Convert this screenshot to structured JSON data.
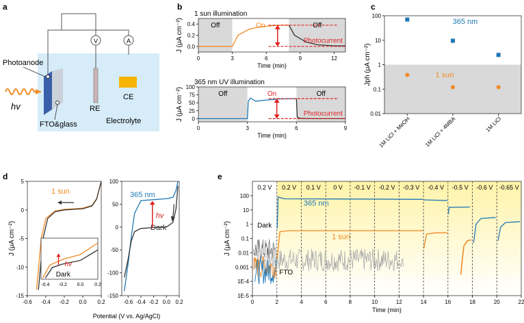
{
  "panel_a": {
    "letter": "a",
    "photoanode": "Photoanode",
    "hv": "hv",
    "fto": "FTO&glass",
    "re": "RE",
    "ce": "CE",
    "electrolyte": "Electrolyte",
    "meter_v": "V",
    "meter_a": "A"
  },
  "colors": {
    "orange": "#f08a24",
    "blue": "#1f77b4",
    "red": "#e02020",
    "gray_shade": "#d9d9d9",
    "yellow": "#fff3a8",
    "electrolyte": "#d6ecf8"
  },
  "chart_data": [
    {
      "panel": "b-top",
      "type": "line",
      "title": "1 sun illumination",
      "xlabel": "Time (min)",
      "ylabel": "J (μA cm⁻²)",
      "xlim": [
        0,
        13
      ],
      "ylim": [
        -0.1,
        0.5
      ],
      "xticks": [
        "0",
        "3",
        "6",
        "9",
        "12"
      ],
      "yticks": [
        "0.0",
        "0.2",
        "0.4"
      ],
      "regions": [
        {
          "label": "Off",
          "from": 0,
          "to": 3
        },
        {
          "label": "On",
          "from": 3,
          "to": 8
        },
        {
          "label": "Off",
          "from": 8,
          "to": 13
        }
      ],
      "annotation": "Photocurrent",
      "series": [
        {
          "name": "1 sun",
          "color": "#f08a24",
          "x": [
            0,
            3,
            3.5,
            4.5,
            5.5,
            6.5,
            7.5,
            8
          ],
          "y": [
            0,
            0,
            0.2,
            0.31,
            0.35,
            0.37,
            0.38,
            0.38
          ]
        },
        {
          "name": "decay",
          "color": "#333333",
          "x": [
            8,
            8.5,
            9.5,
            10.5,
            12,
            13
          ],
          "y": [
            0.38,
            0.2,
            0.08,
            0.03,
            0.01,
            0.01
          ]
        }
      ]
    },
    {
      "panel": "b-bottom",
      "type": "line",
      "title": "365 nm UV illumination",
      "xlabel": "Time (min)",
      "ylabel": "J (μA cm⁻²)",
      "xlim": [
        0,
        9
      ],
      "ylim": [
        -10,
        100
      ],
      "xticks": [
        "0",
        "3",
        "6",
        "9"
      ],
      "yticks": [
        "0",
        "25",
        "50",
        "75",
        "100"
      ],
      "regions": [
        {
          "label": "Off",
          "from": 0,
          "to": 3
        },
        {
          "label": "On",
          "from": 3,
          "to": 6
        },
        {
          "label": "Off",
          "from": 6,
          "to": 9
        }
      ],
      "annotation": "Photocurrent",
      "series": [
        {
          "name": "365 nm",
          "color": "#1f77b4",
          "x": [
            0,
            3,
            3.05,
            3.2,
            3.5,
            4,
            5,
            6
          ],
          "y": [
            0,
            0,
            55,
            65,
            55,
            58,
            62,
            63
          ]
        },
        {
          "name": "decay",
          "color": "#333333",
          "x": [
            6,
            6.05,
            6.2,
            7,
            9
          ],
          "y": [
            63,
            5,
            1,
            0,
            0
          ]
        }
      ]
    },
    {
      "panel": "c",
      "type": "scatter",
      "ylabel": "Jph (μA cm⁻²)",
      "yscale": "log",
      "ylim": [
        0.01,
        100
      ],
      "yticks": [
        "0.01",
        "0.1",
        "1",
        "10",
        "100"
      ],
      "categories": [
        "1M LiCl + MeOH",
        "1M LiCl + 4MBA",
        "1M LiCl"
      ],
      "series": [
        {
          "name": "365 nm",
          "color": "#1f77b4",
          "values": [
            70,
            9.5,
            2.5
          ]
        },
        {
          "name": "1 sun",
          "color": "#f08a24",
          "values": [
            0.38,
            0.12,
            0.12
          ]
        }
      ]
    },
    {
      "panel": "d-left",
      "type": "line",
      "xlabel": "Potential (V vs. Ag/AgCl)",
      "ylabel": "J (μA cm⁻²)",
      "xlim": [
        -0.6,
        0.2
      ],
      "ylim": [
        -15,
        5
      ],
      "xticks": [
        "-0.6",
        "-0.4",
        "-0.2",
        "0.0",
        "0.2"
      ],
      "yticks": [
        "-15",
        "-10",
        "-5",
        "0",
        "5"
      ],
      "legend": "1 sun",
      "inset": {
        "label_dark": "Dark",
        "label_hv": "hv",
        "xticks": [
          "-0.4",
          "-0.2",
          "0.0",
          "0.2"
        ]
      },
      "series": [
        {
          "name": "1 sun",
          "color": "#f08a24",
          "x": [
            -0.5,
            -0.45,
            -0.4,
            -0.3,
            -0.2,
            -0.1,
            0,
            0.1,
            0.15,
            0.2
          ],
          "y": [
            -14,
            -5,
            -1.5,
            -0.2,
            0.1,
            0.2,
            0.3,
            0.8,
            2,
            5
          ]
        },
        {
          "name": "Dark",
          "color": "#333333",
          "x": [
            -0.48,
            -0.43,
            -0.38,
            -0.3,
            -0.2,
            -0.1,
            0,
            0.1,
            0.15,
            0.2
          ],
          "y": [
            -14,
            -5,
            -1.5,
            -0.3,
            0,
            0.1,
            0.2,
            0.7,
            1.9,
            5
          ]
        }
      ]
    },
    {
      "panel": "d-right",
      "type": "line",
      "xlim": [
        -0.7,
        0.2
      ],
      "ylim": [
        -150,
        100
      ],
      "xticks": [
        "-0.6",
        "-0.4",
        "-0.2",
        "0.0",
        "0.2"
      ],
      "yticks": [
        "-150",
        "-100",
        "-50",
        "0",
        "50",
        "100"
      ],
      "labels": {
        "uv": "365 nm",
        "dark": "Dark",
        "hv": "hv"
      },
      "series": [
        {
          "name": "365 nm",
          "color": "#1f77b4",
          "x": [
            -0.66,
            -0.6,
            -0.55,
            -0.5,
            -0.4,
            -0.2,
            0,
            0.1,
            0.15,
            0.18
          ],
          "y": [
            -140,
            -80,
            -20,
            30,
            58,
            60,
            62,
            65,
            80,
            100
          ]
        },
        {
          "name": "Dark",
          "color": "#333333",
          "x": [
            -0.66,
            -0.6,
            -0.55,
            -0.5,
            -0.4,
            -0.2,
            0,
            0.1,
            0.15,
            0.18
          ],
          "y": [
            -110,
            -70,
            -30,
            -10,
            -3,
            -1,
            0,
            10,
            40,
            90
          ]
        }
      ]
    },
    {
      "panel": "e",
      "type": "line",
      "xlabel": "Time (min)",
      "ylabel": "J (μA cm⁻²)",
      "yscale": "log",
      "xlim": [
        0,
        22
      ],
      "ylim": [
        1e-05,
        1000
      ],
      "xticks": [
        "0",
        "2",
        "4",
        "6",
        "8",
        "10",
        "12",
        "14",
        "16",
        "18",
        "20",
        "22"
      ],
      "yticks": [
        "1E-5",
        "1E-4",
        "0.001",
        "0.01",
        "0.1",
        "1",
        "10",
        "100"
      ],
      "voltages": [
        "0.2 V",
        "0.2 V",
        "0.1 V",
        "0 V",
        "-0.1 V",
        "-0.2 V",
        "-0.3 V",
        "-0.4 V",
        "-0.5 V",
        "-0.6 V",
        "-0.65 V"
      ],
      "voltage_bounds": [
        0,
        2,
        4,
        6,
        8,
        10,
        12,
        14,
        16,
        18,
        20,
        22
      ],
      "labels": {
        "uv": "365 nm",
        "sun": "1 sun",
        "dark": "Dark",
        "fto": "FTO"
      }
    }
  ],
  "letters": {
    "b": "b",
    "c": "c",
    "d": "d",
    "e": "e"
  }
}
